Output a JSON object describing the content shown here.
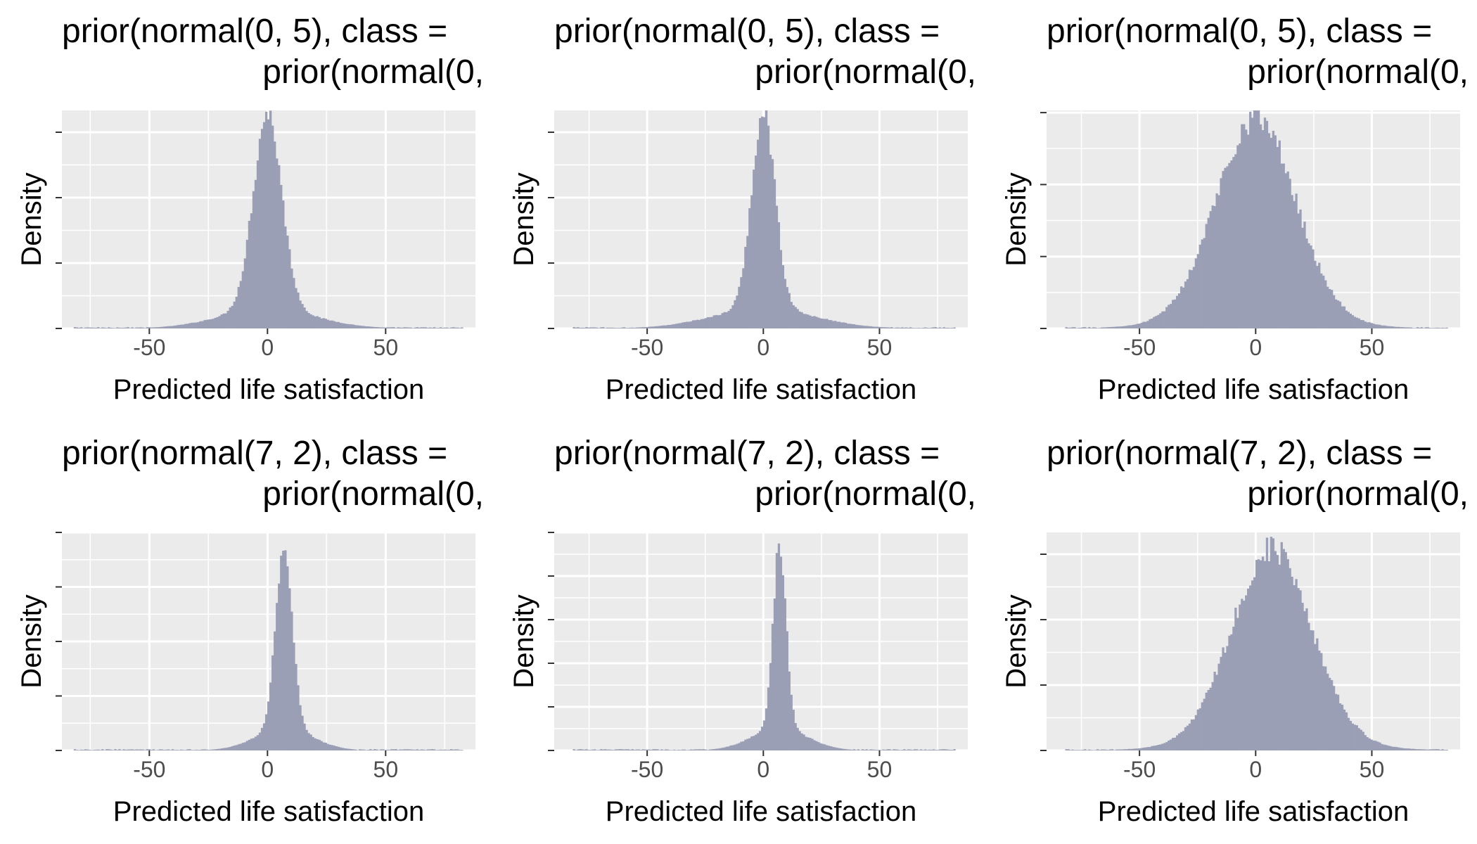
{
  "chart_data": [
    {
      "type": "histogram",
      "title_line1": "prior(normal(0, 5), class =",
      "title_line2": "prior(normal(0,",
      "xlabel": "Predicted life satisfaction",
      "ylabel": "Density",
      "xlim": [
        -87,
        88
      ],
      "ylim": [
        0,
        1
      ],
      "x_ticks": [
        -50,
        0,
        50
      ],
      "x_tick_labels": [
        "-50",
        "0",
        "50"
      ],
      "y_ticks": [
        0,
        0.3,
        0.6,
        0.9
      ],
      "grid": true,
      "fill_color": "#9a9fb5",
      "distribution": {
        "center": 0,
        "sd": 6,
        "tail_sd": 20,
        "tail_weight": 0.1,
        "max_density": 0.99,
        "noise": 0.06
      }
    },
    {
      "type": "histogram",
      "title_line1": "prior(normal(0, 5), class =",
      "title_line2": "prior(normal(0,",
      "xlabel": "Predicted life satisfaction",
      "ylabel": "Density",
      "xlim": [
        -90,
        88
      ],
      "ylim": [
        0,
        1
      ],
      "x_ticks": [
        -50,
        0,
        50
      ],
      "x_tick_labels": [
        "-50",
        "0",
        "50"
      ],
      "y_ticks": [
        0,
        0.3,
        0.6,
        0.9
      ],
      "grid": true,
      "fill_color": "#9a9fb5",
      "distribution": {
        "center": 0,
        "sd": 5,
        "tail_sd": 22,
        "tail_weight": 0.1,
        "max_density": 1.0,
        "noise": 0.06
      }
    },
    {
      "type": "histogram",
      "title_line1": "prior(normal(0, 5), class =",
      "title_line2": "prior(normal(0,",
      "xlabel": "Predicted life satisfaction",
      "ylabel": "Density",
      "xlim": [
        -90,
        88
      ],
      "ylim": [
        0,
        1
      ],
      "x_ticks": [
        -50,
        0,
        50
      ],
      "x_tick_labels": [
        "-50",
        "0",
        "50"
      ],
      "y_ticks": [
        0,
        0.33,
        0.66,
        0.99
      ],
      "grid": true,
      "fill_color": "#9a9fb5",
      "distribution": {
        "center": 0,
        "sd": 17,
        "tail_sd": 30,
        "tail_weight": 0.05,
        "max_density": 0.97,
        "noise": 0.07
      }
    },
    {
      "type": "histogram",
      "title_line1": "prior(normal(7, 2), class =",
      "title_line2": "prior(normal(0,",
      "xlabel": "Predicted life satisfaction",
      "ylabel": "Density",
      "xlim": [
        -87,
        88
      ],
      "ylim": [
        0,
        1
      ],
      "x_ticks": [
        -50,
        0,
        50
      ],
      "x_tick_labels": [
        "-50",
        "0",
        "50"
      ],
      "y_ticks": [
        0,
        0.25,
        0.5,
        0.75,
        1.0
      ],
      "grid": true,
      "fill_color": "#9a9fb5",
      "distribution": {
        "center": 7,
        "sd": 3.5,
        "tail_sd": 12,
        "tail_weight": 0.12,
        "max_density": 0.95,
        "noise": 0.05
      }
    },
    {
      "type": "histogram",
      "title_line1": "prior(normal(7, 2), class =",
      "title_line2": "prior(normal(0,",
      "xlabel": "Predicted life satisfaction",
      "ylabel": "Density",
      "xlim": [
        -90,
        88
      ],
      "ylim": [
        0,
        1
      ],
      "x_ticks": [
        -50,
        0,
        50
      ],
      "x_tick_labels": [
        "-50",
        "0",
        "50"
      ],
      "y_ticks": [
        0,
        0.2,
        0.4,
        0.6,
        0.8,
        1.0
      ],
      "grid": true,
      "fill_color": "#9a9fb5",
      "distribution": {
        "center": 7,
        "sd": 2.8,
        "tail_sd": 12,
        "tail_weight": 0.12,
        "max_density": 0.95,
        "noise": 0.05
      }
    },
    {
      "type": "histogram",
      "title_line1": "prior(normal(7, 2), class =",
      "title_line2": "prior(normal(0,",
      "xlabel": "Predicted life satisfaction",
      "ylabel": "Density",
      "xlim": [
        -90,
        88
      ],
      "ylim": [
        0,
        1
      ],
      "x_ticks": [
        -50,
        0,
        50
      ],
      "x_tick_labels": [
        "-50",
        "0",
        "50"
      ],
      "y_ticks": [
        0,
        0.3,
        0.6,
        0.9
      ],
      "grid": true,
      "fill_color": "#9a9fb5",
      "distribution": {
        "center": 7,
        "sd": 17,
        "tail_sd": 30,
        "tail_weight": 0.05,
        "max_density": 0.93,
        "noise": 0.07
      }
    }
  ]
}
